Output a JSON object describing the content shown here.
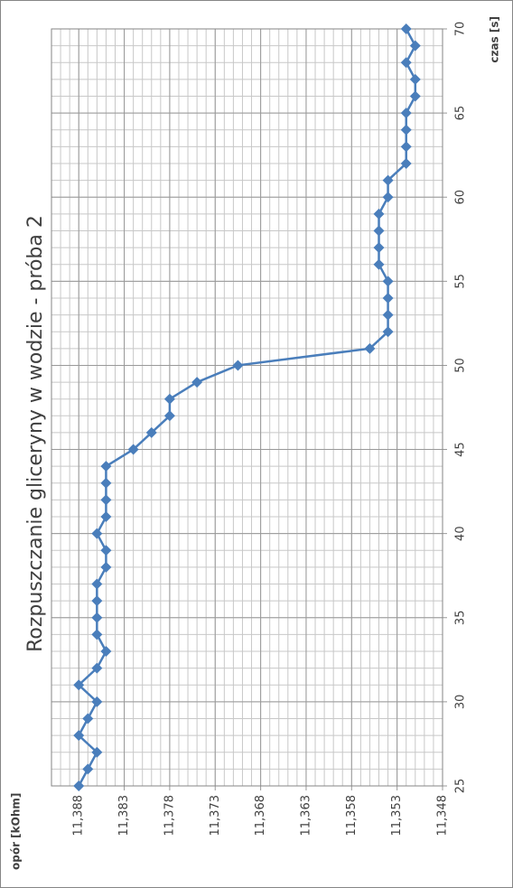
{
  "chart_data": {
    "type": "line",
    "title": "Rozpuszczanie gliceryny w wodzie - próba 2",
    "x_label": "czas [s]",
    "y_label": "opór [kOhm]",
    "x": [
      25,
      26,
      27,
      28,
      29,
      30,
      31,
      32,
      33,
      34,
      35,
      36,
      37,
      38,
      39,
      40,
      41,
      42,
      43,
      44,
      45,
      46,
      47,
      48,
      49,
      50,
      51,
      52,
      53,
      54,
      55,
      56,
      57,
      58,
      59,
      60,
      61,
      62,
      63,
      64,
      65,
      66,
      67,
      68,
      69,
      70
    ],
    "series": [
      {
        "name": "opór",
        "color": "#4a7ebb",
        "values": [
          11.388,
          11.387,
          11.386,
          11.388,
          11.387,
          11.386,
          11.388,
          11.386,
          11.385,
          11.386,
          11.386,
          11.386,
          11.386,
          11.385,
          11.385,
          11.386,
          11.385,
          11.385,
          11.385,
          11.385,
          11.382,
          11.38,
          11.378,
          11.378,
          11.375,
          11.3705,
          11.356,
          11.354,
          11.354,
          11.354,
          11.354,
          11.355,
          11.355,
          11.355,
          11.355,
          11.354,
          11.354,
          11.352,
          11.352,
          11.352,
          11.352,
          11.351,
          11.351,
          11.352,
          11.351,
          11.352
        ]
      }
    ],
    "xlim": [
      25,
      70
    ],
    "xticks": [
      25,
      30,
      35,
      40,
      45,
      50,
      55,
      60,
      65,
      70
    ],
    "ylim": [
      11.348,
      11.391
    ],
    "yticks": [
      {
        "value": 11.348,
        "label": "11,348"
      },
      {
        "value": 11.353,
        "label": "11,353"
      },
      {
        "value": 11.358,
        "label": "11,358"
      },
      {
        "value": 11.363,
        "label": "11,363"
      },
      {
        "value": 11.368,
        "label": "11,368"
      },
      {
        "value": 11.373,
        "label": "11,373"
      },
      {
        "value": 11.378,
        "label": "11,378"
      },
      {
        "value": 11.383,
        "label": "11,383"
      },
      {
        "value": 11.388,
        "label": "11,388"
      }
    ],
    "grid": true
  }
}
